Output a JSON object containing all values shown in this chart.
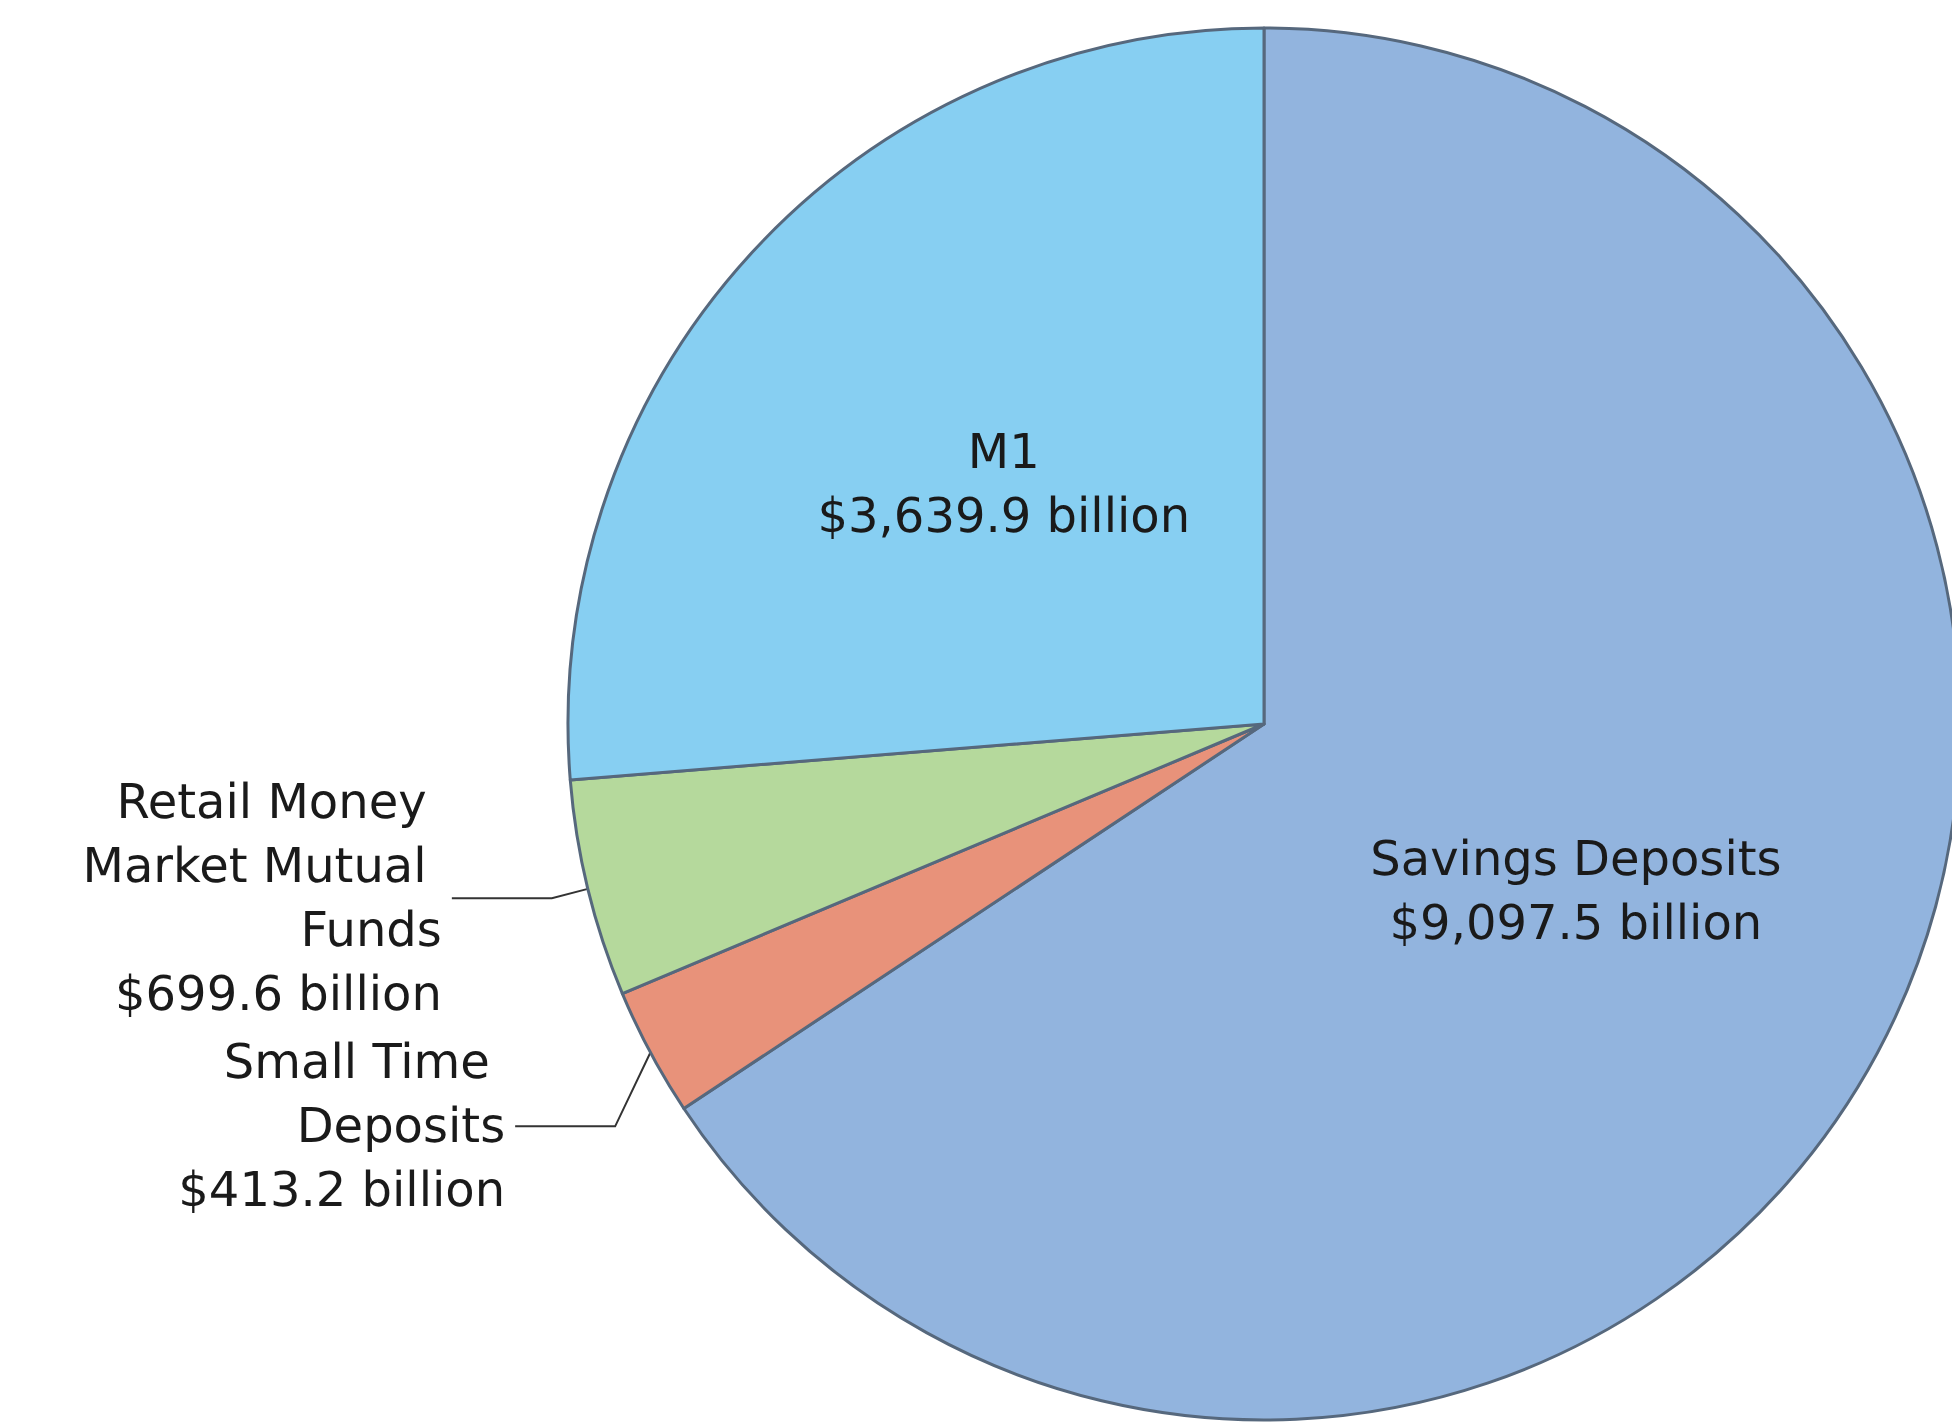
{
  "chart_data": {
    "type": "pie",
    "categories": [
      "Savings Deposits",
      "Small Time Deposits",
      "Retail Money Market Mutual Funds",
      "M1"
    ],
    "values": [
      9097.5,
      413.2,
      699.6,
      3639.9
    ],
    "colors": [
      "#92b4de",
      "#e8927a",
      "#b5d99c",
      "#87cff2"
    ],
    "value_labels": [
      "$9,097.5 billion",
      "$413.2 billion",
      "$699.6 billion",
      "$3,639.9 billion"
    ]
  }
}
